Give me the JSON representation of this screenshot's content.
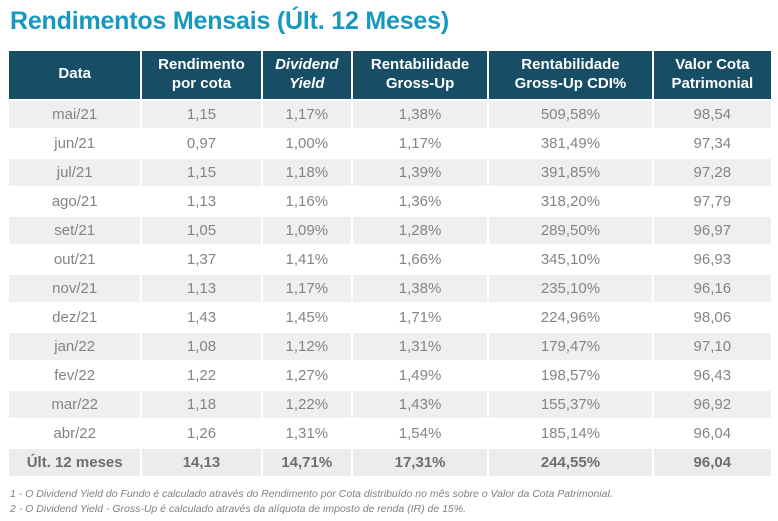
{
  "title": "Rendimentos Mensais (Últ. 12 Meses)",
  "colors": {
    "title": "#1799bf",
    "header_bg": "#174e66",
    "header_text": "#ffffff",
    "row_alt_bg": "#efefef",
    "row_text": "#848484",
    "total_bg": "#ececec",
    "total_text": "#6e6e6e",
    "footnote": "#7f7f7f"
  },
  "table": {
    "columns": [
      {
        "label": "Data",
        "italic": false
      },
      {
        "label": "Rendimento por cota",
        "italic": false
      },
      {
        "label": "Dividend Yield",
        "italic": true
      },
      {
        "label": "Rentabilidade Gross-Up",
        "italic": false
      },
      {
        "label": "Rentabilidade Gross-Up CDI%",
        "italic": false
      },
      {
        "label": "Valor Cota Patrimonial",
        "italic": false
      }
    ],
    "rows": [
      [
        "mai/21",
        "1,15",
        "1,17%",
        "1,38%",
        "509,58%",
        "98,54"
      ],
      [
        "jun/21",
        "0,97",
        "1,00%",
        "1,17%",
        "381,49%",
        "97,34"
      ],
      [
        "jul/21",
        "1,15",
        "1,18%",
        "1,39%",
        "391,85%",
        "97,28"
      ],
      [
        "ago/21",
        "1,13",
        "1,16%",
        "1,36%",
        "318,20%",
        "97,79"
      ],
      [
        "set/21",
        "1,05",
        "1,09%",
        "1,28%",
        "289,50%",
        "96,97"
      ],
      [
        "out/21",
        "1,37",
        "1,41%",
        "1,66%",
        "345,10%",
        "96,93"
      ],
      [
        "nov/21",
        "1,13",
        "1,17%",
        "1,38%",
        "235,10%",
        "96,16"
      ],
      [
        "dez/21",
        "1,43",
        "1,45%",
        "1,71%",
        "224,96%",
        "98,06"
      ],
      [
        "jan/22",
        "1,08",
        "1,12%",
        "1,31%",
        "179,47%",
        "97,10"
      ],
      [
        "fev/22",
        "1,22",
        "1,27%",
        "1,49%",
        "198,57%",
        "96,43"
      ],
      [
        "mar/22",
        "1,18",
        "1,22%",
        "1,43%",
        "155,37%",
        "96,92"
      ],
      [
        "abr/22",
        "1,26",
        "1,31%",
        "1,54%",
        "185,14%",
        "96,04"
      ]
    ],
    "total_row": [
      "Últ. 12 meses",
      "14,13",
      "14,71%",
      "17,31%",
      "244,55%",
      "96,04"
    ]
  },
  "footnotes": [
    "1 - O Dividend Yield do Fundo é calculado através do Rendimento por Cota distribuído no mês sobre o Valor da Cota Patrimonial.",
    "2 - O Dividend Yield - Gross-Up é calculado através da alíquota de imposto de renda (IR) de 15%."
  ]
}
